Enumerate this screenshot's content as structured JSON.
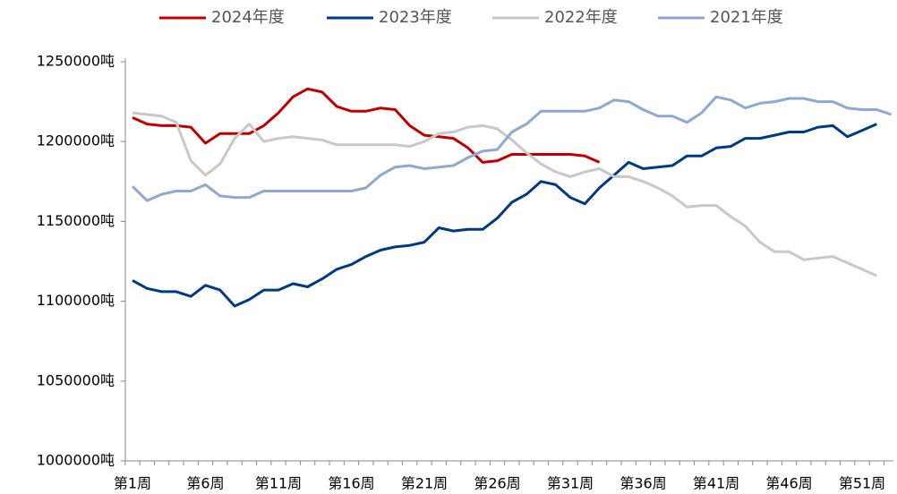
{
  "chart_data": {
    "type": "line",
    "categories": [
      "第1周",
      null,
      null,
      null,
      null,
      "第6周",
      null,
      null,
      null,
      null,
      "第11周",
      null,
      null,
      null,
      null,
      "第16周",
      null,
      null,
      null,
      null,
      "第21周",
      null,
      null,
      null,
      null,
      "第26周",
      null,
      null,
      null,
      null,
      "第31周",
      null,
      null,
      null,
      null,
      "第36周",
      null,
      null,
      null,
      null,
      "第41周",
      null,
      null,
      null,
      null,
      "第46周",
      null,
      null,
      null,
      null,
      "第51周",
      null,
      null
    ],
    "series": [
      {
        "name": "2024年度",
        "color": "#c00000",
        "values": [
          1215000,
          1211000,
          1210000,
          1210000,
          1209000,
          1199000,
          1205000,
          1205000,
          1205000,
          1210000,
          1218000,
          1228000,
          1233000,
          1231000,
          1222000,
          1219000,
          1219000,
          1221000,
          1220000,
          1210000,
          1204000,
          1203000,
          1202000,
          1196000,
          1187000,
          1188000,
          1192000,
          1192000,
          1192000,
          1192000,
          1192000,
          1191000,
          1187000,
          null,
          null,
          null,
          null,
          null,
          null,
          null,
          null,
          null,
          null,
          null,
          null,
          null,
          null,
          null,
          null,
          null,
          null,
          null,
          null
        ]
      },
      {
        "name": "2023年度",
        "color": "#003a80",
        "values": [
          1113000,
          1108000,
          1106000,
          1106000,
          1103000,
          1110000,
          1107000,
          1097000,
          1101000,
          1107000,
          1107000,
          1111000,
          1109000,
          1114000,
          1120000,
          1123000,
          1128000,
          1132000,
          1134000,
          1135000,
          1137000,
          1146000,
          1144000,
          1145000,
          1145000,
          1152000,
          1162000,
          1167000,
          1175000,
          1173000,
          1165000,
          1161000,
          1171000,
          1179000,
          1187000,
          1183000,
          1184000,
          1185000,
          1191000,
          1191000,
          1196000,
          1197000,
          1202000,
          1202000,
          1204000,
          1206000,
          1206000,
          1209000,
          1210000,
          1203000,
          1207000,
          1211000,
          null
        ]
      },
      {
        "name": "2022年度",
        "color": "#c8c8c8",
        "values": [
          1218000,
          1217000,
          1216000,
          1212000,
          1188000,
          1179000,
          1186000,
          1202000,
          1211000,
          1200000,
          1202000,
          1203000,
          1202000,
          1201000,
          1198000,
          1198000,
          1198000,
          1198000,
          1198000,
          1197000,
          1200000,
          1205000,
          1206000,
          1209000,
          1210000,
          1208000,
          1201000,
          1193000,
          1186000,
          1181000,
          1178000,
          1181000,
          1183000,
          1178000,
          1178000,
          1175000,
          1171000,
          1166000,
          1159000,
          1160000,
          1160000,
          1153000,
          1147000,
          1137000,
          1131000,
          1131000,
          1126000,
          1127000,
          1128000,
          1124000,
          1120000,
          1116000,
          null
        ]
      },
      {
        "name": "2021年度",
        "color": "#8ea9d0",
        "values": [
          1172000,
          1163000,
          1167000,
          1169000,
          1169000,
          1173000,
          1166000,
          1165000,
          1165000,
          1169000,
          1169000,
          1169000,
          1169000,
          1169000,
          1169000,
          1169000,
          1171000,
          1179000,
          1184000,
          1185000,
          1183000,
          1184000,
          1185000,
          1190000,
          1194000,
          1195000,
          1206000,
          1211000,
          1219000,
          1219000,
          1219000,
          1219000,
          1221000,
          1226000,
          1225000,
          1220000,
          1216000,
          1216000,
          1212000,
          1218000,
          1228000,
          1226000,
          1221000,
          1224000,
          1225000,
          1227000,
          1227000,
          1225000,
          1225000,
          1221000,
          1220000,
          1220000,
          1217000
        ]
      }
    ],
    "ylim": [
      1000000,
      1250000
    ],
    "yticks": [
      {
        "value": 1000000,
        "label": "1000000吨"
      },
      {
        "value": 1050000,
        "label": "1050000吨"
      },
      {
        "value": 1100000,
        "label": "1100000吨"
      },
      {
        "value": 1150000,
        "label": "1150000吨"
      },
      {
        "value": 1200000,
        "label": "1200000吨"
      },
      {
        "value": 1250000,
        "label": "1250000吨"
      }
    ],
    "legend": "top"
  }
}
